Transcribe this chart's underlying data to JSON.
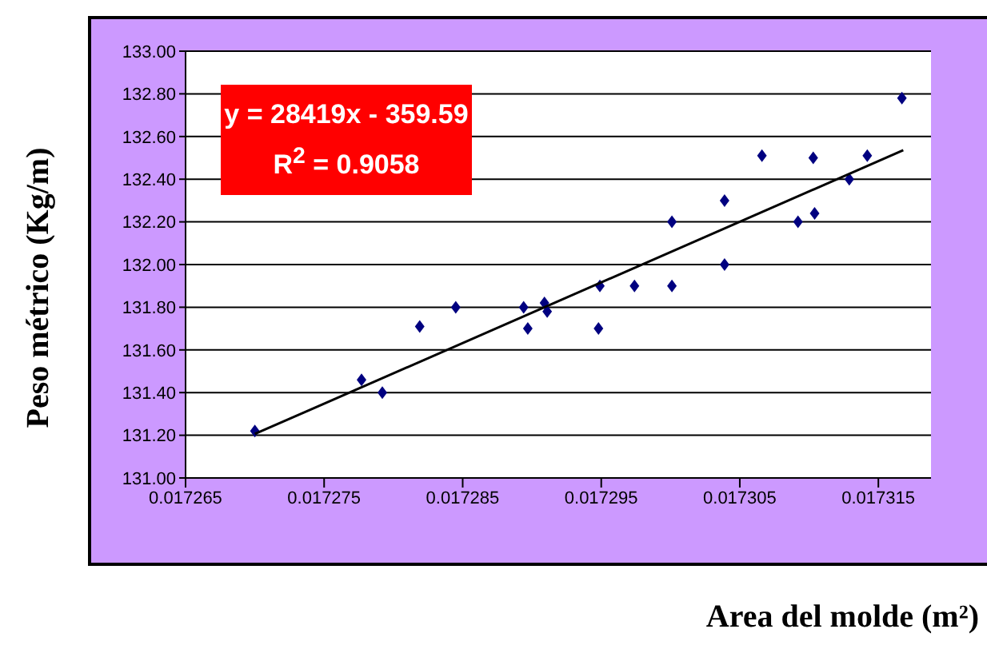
{
  "chart_data": {
    "type": "scatter",
    "xlabel": "Area del molde (m²)",
    "ylabel": "Peso métrico (Kg/m)",
    "xlim": [
      0.017265,
      0.0173188
    ],
    "xticks": [
      0.017265,
      0.017275,
      0.017285,
      0.017295,
      0.017305,
      0.017315
    ],
    "ylim": [
      131,
      133
    ],
    "yticks": [
      {
        "value": 131,
        "label": "131.00"
      },
      {
        "value": 131.2,
        "label": "131.20"
      },
      {
        "value": 131.4,
        "label": "131.40"
      },
      {
        "value": 131.6,
        "label": "131.60"
      },
      {
        "value": 131.8,
        "label": "131.80"
      },
      {
        "value": 132,
        "label": "132.00"
      },
      {
        "value": 132.2,
        "label": "132.20"
      },
      {
        "value": 132.4,
        "label": "132.40"
      },
      {
        "value": 132.6,
        "label": "132.60"
      },
      {
        "value": 132.8,
        "label": "132.80"
      },
      {
        "value": 133,
        "label": "133.00"
      }
    ],
    "grid": "y",
    "annotations": [
      "y = 28419x - 359.59",
      "R$^{2}$ = 0.9058"
    ],
    "series": [
      {
        "marker": "diamond",
        "color": "#000080",
        "x": [
          0.01727,
          0.0172777,
          0.0172792,
          0.0172819,
          0.0172845,
          0.0172894,
          0.0172897,
          0.0172909,
          0.0172911,
          0.0172949,
          0.0172948,
          0.0172974,
          0.0173001,
          0.0173001,
          0.0173039,
          0.0173039,
          0.0173066,
          0.0173092,
          0.0173103,
          0.0173104,
          0.0173129,
          0.0173142,
          0.0173167
        ],
        "values": [
          131.22,
          131.46,
          131.4,
          131.71,
          131.8,
          131.8,
          131.7,
          131.82,
          131.78,
          131.9,
          131.7,
          131.9,
          132.2,
          131.9,
          132.0,
          132.3,
          132.51,
          132.2,
          132.5,
          132.24,
          132.4,
          132.51,
          132.78
        ]
      },
      {
        "type": "line",
        "marker": "none",
        "color": "#000000",
        "x": [
          0.01727,
          0.0173168
        ],
        "values": [
          131.206,
          132.536
        ]
      }
    ]
  }
}
